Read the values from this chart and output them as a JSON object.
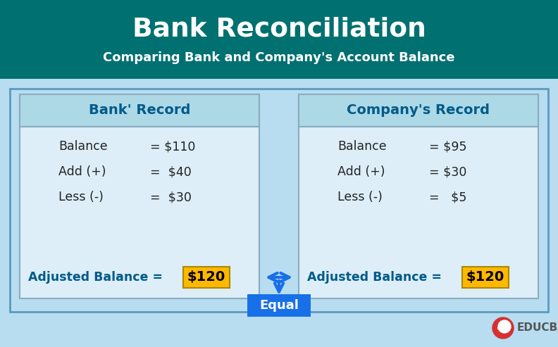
{
  "title": "Bank Reconciliation",
  "subtitle": "Comparing Bank and Company's Account Balance",
  "title_bg": "#007070",
  "title_color": "#ffffff",
  "subtitle_color": "#ffffff",
  "body_bg": "#b8ddf0",
  "panel_bg": "#ddeef8",
  "panel_border": "#8aacbf",
  "header_bg": "#add8e6",
  "header_text_color": "#005b8a",
  "bank_header": "Bank' Record",
  "company_header": "Company's Record",
  "bank_items": [
    [
      "Balance",
      "= $110"
    ],
    [
      "Add (+)",
      "=  $40"
    ],
    [
      "Less (-)",
      "=  $30"
    ]
  ],
  "company_items": [
    [
      "Balance",
      "= $95"
    ],
    [
      "Add (+)",
      "= $30"
    ],
    [
      "Less (-)",
      "=   $5"
    ]
  ],
  "adjusted_label": "Adjusted Balance =",
  "adjusted_value": "$120",
  "adjusted_value_bg": "#FFB800",
  "adjusted_text_color": "#005b8a",
  "adjusted_value_color": "#000000",
  "equal_label": "Equal",
  "equal_bg": "#1870e8",
  "equal_text_color": "#ffffff",
  "arrow_color": "#1870e8",
  "body_item_color": "#222222",
  "educba_red": "#d63030",
  "outer_border_color": "#5a9abf",
  "fig_w": 7.92,
  "fig_h": 4.93,
  "dpi": 100
}
